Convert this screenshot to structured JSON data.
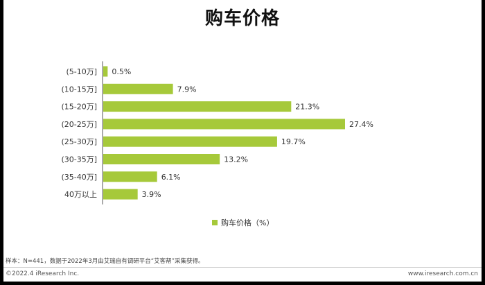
{
  "chart_data": {
    "type": "bar",
    "orientation": "horizontal",
    "title": "购车价格",
    "categories": [
      "(5-10万]",
      "(10-15万]",
      "(15-20万]",
      "(20-25万]",
      "(25-30万]",
      "(30-35万]",
      "(35-40万]",
      "40万以上"
    ],
    "series": [
      {
        "name": "购车价格（%）",
        "values": [
          0.5,
          7.9,
          21.3,
          27.4,
          19.7,
          13.2,
          6.1,
          3.9
        ]
      }
    ],
    "value_labels": [
      "0.5%",
      "7.9%",
      "21.3%",
      "27.4%",
      "19.7%",
      "13.2%",
      "6.1%",
      "3.9%"
    ],
    "grid": false,
    "legend_position": "bottom",
    "bar_color": "#a6c93a"
  },
  "footnote": "样本：N=441，数据于2022年3月由艾瑞自有调研平台“艾客帮”采集获得。",
  "copyright": "©2022.4 iResearch Inc.",
  "website": "www.iresearch.com.cn"
}
